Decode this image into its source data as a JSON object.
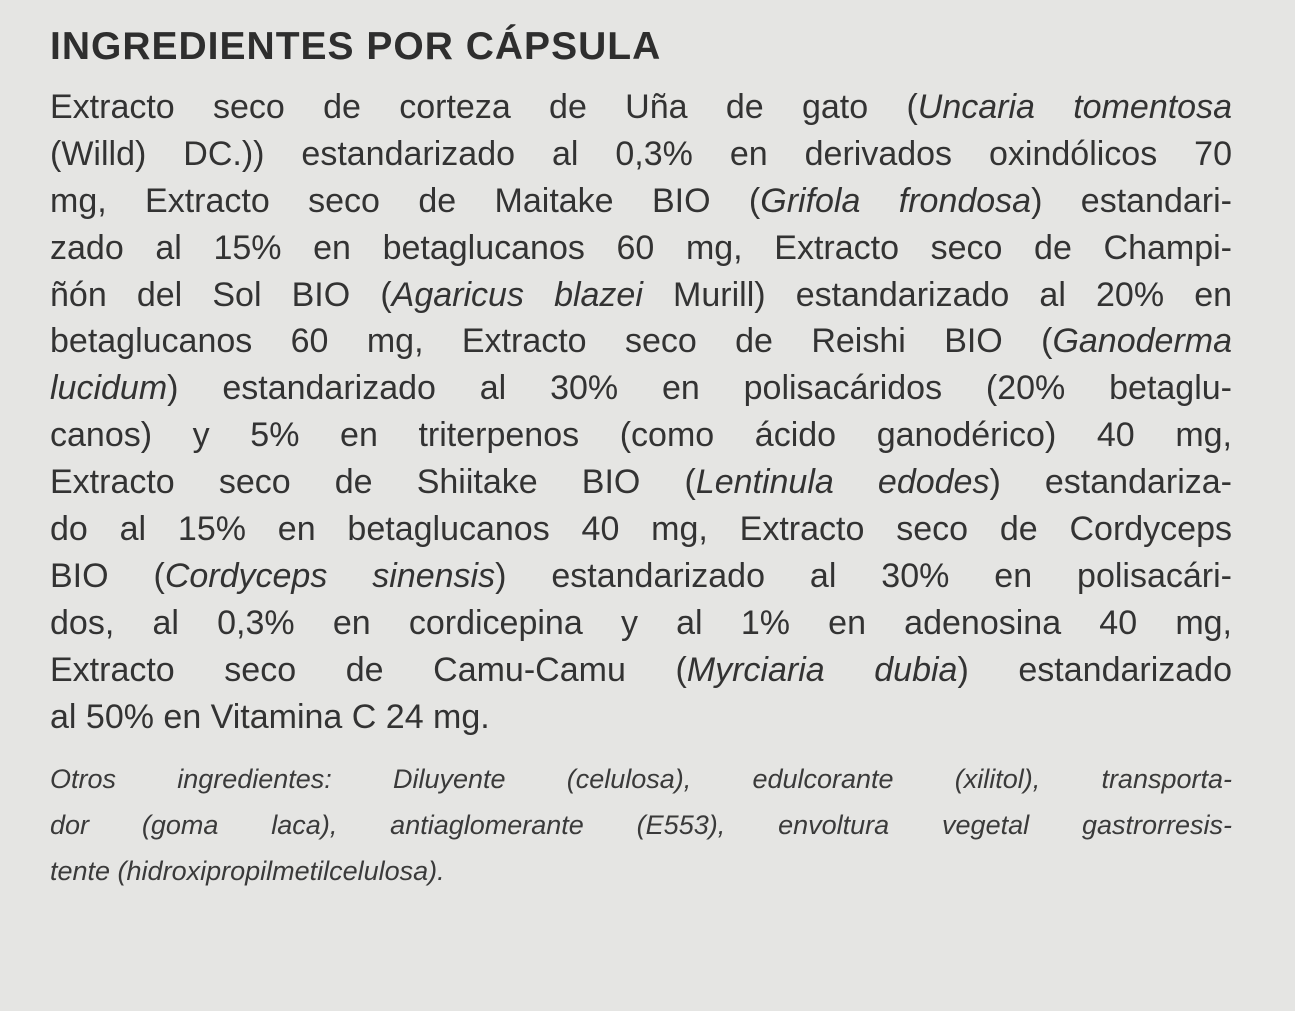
{
  "title": "INGREDIENTES POR CÁPSULA",
  "body_lines": [
    [
      {
        "t": "Extracto seco de corteza de Uña de gato (",
        "i": false
      },
      {
        "t": "Uncaria tomentosa",
        "i": true
      }
    ],
    [
      {
        "t": "(Willd) DC.)) estandarizado al 0,3% en derivados oxindólicos 70",
        "i": false
      }
    ],
    [
      {
        "t": "mg, Extracto seco de Maitake BIO (",
        "i": false
      },
      {
        "t": "Grifola frondosa",
        "i": true
      },
      {
        "t": ") estandari-",
        "i": false
      }
    ],
    [
      {
        "t": "zado al 15% en betaglucanos 60 mg, Extracto seco de Champi-",
        "i": false
      }
    ],
    [
      {
        "t": "ñón del Sol BIO (",
        "i": false
      },
      {
        "t": "Agaricus blazei",
        "i": true
      },
      {
        "t": " Murill) estandarizado al 20% en",
        "i": false
      }
    ],
    [
      {
        "t": "betaglucanos 60 mg, Extracto seco de Reishi BIO (",
        "i": false
      },
      {
        "t": "Ganoderma",
        "i": true
      }
    ],
    [
      {
        "t": "lucidum",
        "i": true
      },
      {
        "t": ") estandarizado al 30% en polisacáridos (20% betaglu-",
        "i": false
      }
    ],
    [
      {
        "t": "canos) y 5% en triterpenos (como ácido ganodérico) 40 mg,",
        "i": false
      }
    ],
    [
      {
        "t": "Extracto seco de Shiitake BIO (",
        "i": false
      },
      {
        "t": "Lentinula edodes",
        "i": true
      },
      {
        "t": ") estandariza-",
        "i": false
      }
    ],
    [
      {
        "t": "do al 15% en betaglucanos 40 mg, Extracto seco de Cordyceps",
        "i": false
      }
    ],
    [
      {
        "t": "BIO (",
        "i": false
      },
      {
        "t": "Cordyceps sinensis",
        "i": true
      },
      {
        "t": ") estandarizado al 30% en polisacári-",
        "i": false
      }
    ],
    [
      {
        "t": "dos, al 0,3% en cordicepina y al 1% en adenosina 40 mg,",
        "i": false
      }
    ],
    [
      {
        "t": "Extracto seco de Camu-Camu (",
        "i": false
      },
      {
        "t": "Myrciaria dubia",
        "i": true
      },
      {
        "t": ") estandarizado",
        "i": false
      }
    ],
    [
      {
        "t": "al 50% en Vitamina C 24 mg.",
        "i": false
      }
    ]
  ],
  "other_lines": [
    "Otros ingredientes: Diluyente (celulosa), edulcorante (xilitol), transporta-",
    "dor (goma laca), antiaglomerante (E553), envoltura vegetal gastrorresis-",
    "tente (hidroxipropilmetilcelulosa)."
  ]
}
